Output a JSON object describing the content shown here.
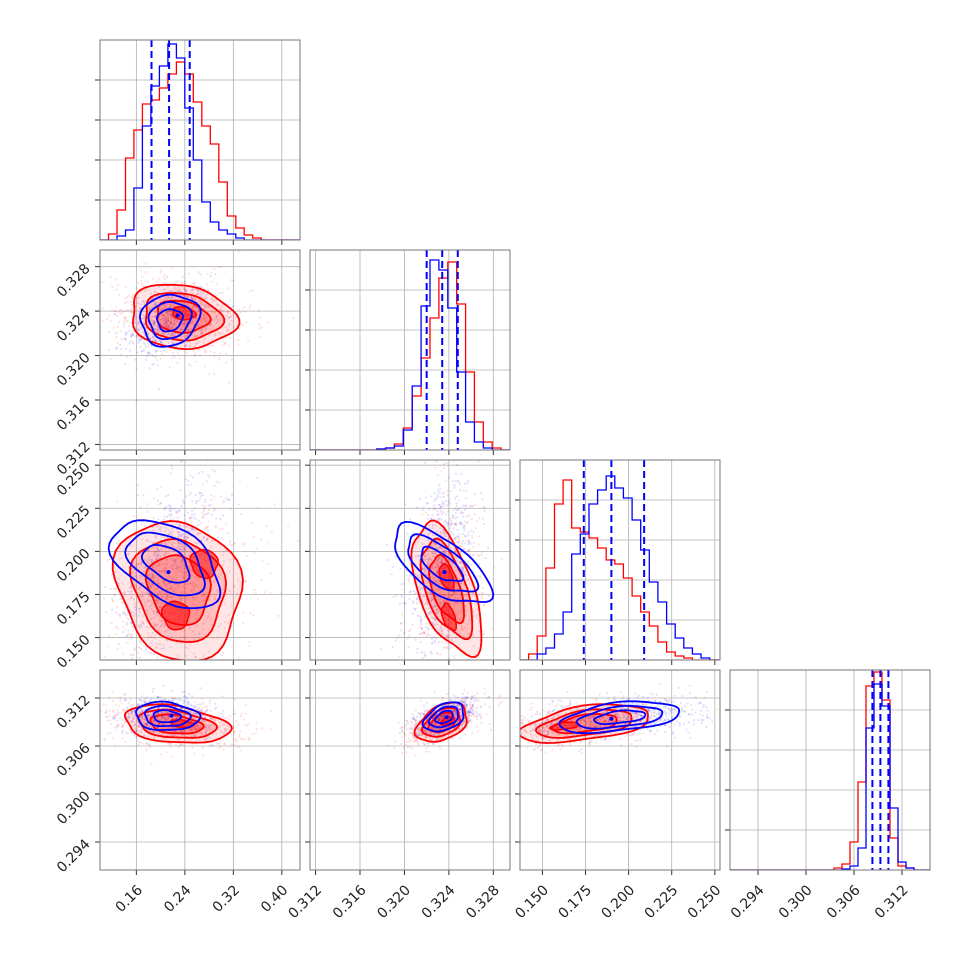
{
  "colors": {
    "series_red": "#ff0000",
    "series_blue": "#0000ff",
    "grid": "#b0b0b0",
    "frame": "#777777",
    "background": "#ffffff"
  },
  "chart_data": {
    "type": "corner",
    "grid": true,
    "legend": "none",
    "series": [
      {
        "color": "#ff0000"
      },
      {
        "color": "#0000ff"
      }
    ],
    "parameters": [
      {
        "range": [
          0.1,
          0.43
        ],
        "ticks": [
          0.16,
          0.24,
          0.32,
          0.4
        ],
        "tick_labels": [
          "0.16",
          "0.24",
          "0.32",
          "0.40"
        ]
      },
      {
        "range": [
          0.3115,
          0.3295
        ],
        "ticks": [
          0.312,
          0.316,
          0.32,
          0.324,
          0.328
        ],
        "tick_labels": [
          "0.312",
          "0.316",
          "0.320",
          "0.324",
          "0.328"
        ]
      },
      {
        "range": [
          0.137,
          0.253
        ],
        "ticks": [
          0.15,
          0.175,
          0.2,
          0.225,
          0.25
        ],
        "tick_labels": [
          "0.150",
          "0.175",
          "0.200",
          "0.225",
          "0.250"
        ]
      },
      {
        "range": [
          0.2905,
          0.3155
        ],
        "ticks": [
          0.294,
          0.3,
          0.306,
          0.312
        ],
        "tick_labels": [
          "0.294",
          "0.300",
          "0.306",
          "0.312"
        ]
      }
    ],
    "marginals": [
      {
        "quantiles_blue": [
          0.185,
          0.214,
          0.248
        ],
        "red": [
          [
            0.1,
            0.114,
            0.0
          ],
          [
            0.114,
            0.128,
            0.03
          ],
          [
            0.128,
            0.142,
            0.15
          ],
          [
            0.142,
            0.156,
            0.41
          ],
          [
            0.156,
            0.17,
            0.55
          ],
          [
            0.17,
            0.184,
            0.68
          ],
          [
            0.184,
            0.198,
            0.7
          ],
          [
            0.198,
            0.212,
            0.76
          ],
          [
            0.212,
            0.226,
            0.83
          ],
          [
            0.226,
            0.24,
            0.89
          ],
          [
            0.24,
            0.254,
            0.83
          ],
          [
            0.254,
            0.268,
            0.69
          ],
          [
            0.268,
            0.282,
            0.57
          ],
          [
            0.282,
            0.296,
            0.48
          ],
          [
            0.296,
            0.31,
            0.29
          ],
          [
            0.31,
            0.324,
            0.12
          ],
          [
            0.324,
            0.338,
            0.06
          ],
          [
            0.338,
            0.352,
            0.025
          ],
          [
            0.352,
            0.366,
            0.01
          ],
          [
            0.366,
            0.43,
            0.0
          ]
        ],
        "blue": [
          [
            0.1,
            0.128,
            0.0
          ],
          [
            0.128,
            0.142,
            0.02
          ],
          [
            0.142,
            0.156,
            0.05
          ],
          [
            0.156,
            0.17,
            0.26
          ],
          [
            0.17,
            0.184,
            0.57
          ],
          [
            0.184,
            0.198,
            0.77
          ],
          [
            0.198,
            0.212,
            0.87
          ],
          [
            0.212,
            0.226,
            0.98
          ],
          [
            0.226,
            0.24,
            0.91
          ],
          [
            0.24,
            0.254,
            0.66
          ],
          [
            0.254,
            0.268,
            0.4
          ],
          [
            0.268,
            0.282,
            0.19
          ],
          [
            0.282,
            0.296,
            0.09
          ],
          [
            0.296,
            0.31,
            0.05
          ],
          [
            0.31,
            0.324,
            0.03
          ],
          [
            0.324,
            0.338,
            0.01
          ],
          [
            0.338,
            0.43,
            0.0
          ]
        ]
      },
      {
        "quantiles_blue": [
          0.322,
          0.3234,
          0.3248
        ],
        "red": [
          [
            0.3115,
            0.3175,
            0.0
          ],
          [
            0.3175,
            0.3183,
            0.005
          ],
          [
            0.3183,
            0.3191,
            0.01
          ],
          [
            0.3191,
            0.3199,
            0.03
          ],
          [
            0.3199,
            0.3207,
            0.11
          ],
          [
            0.3207,
            0.3215,
            0.27
          ],
          [
            0.3215,
            0.3223,
            0.46
          ],
          [
            0.3223,
            0.3231,
            0.66
          ],
          [
            0.3231,
            0.3239,
            0.86
          ],
          [
            0.3239,
            0.3247,
            0.94
          ],
          [
            0.3247,
            0.3255,
            0.73
          ],
          [
            0.3255,
            0.3263,
            0.39
          ],
          [
            0.3263,
            0.3271,
            0.14
          ],
          [
            0.3271,
            0.3279,
            0.04
          ],
          [
            0.3279,
            0.3287,
            0.01
          ],
          [
            0.3287,
            0.3295,
            0.0
          ]
        ],
        "blue": [
          [
            0.3115,
            0.3175,
            0.0
          ],
          [
            0.3175,
            0.3183,
            0.005
          ],
          [
            0.3183,
            0.3191,
            0.01
          ],
          [
            0.3191,
            0.3199,
            0.02
          ],
          [
            0.3199,
            0.3207,
            0.1
          ],
          [
            0.3207,
            0.3215,
            0.32
          ],
          [
            0.3215,
            0.3223,
            0.72
          ],
          [
            0.3223,
            0.3231,
            0.95
          ],
          [
            0.3231,
            0.3239,
            0.9
          ],
          [
            0.3239,
            0.3247,
            0.71
          ],
          [
            0.3247,
            0.3255,
            0.39
          ],
          [
            0.3255,
            0.3263,
            0.14
          ],
          [
            0.3263,
            0.3271,
            0.04
          ],
          [
            0.3271,
            0.3279,
            0.01
          ],
          [
            0.3279,
            0.3295,
            0.0
          ]
        ]
      },
      {
        "quantiles_blue": [
          0.174,
          0.19,
          0.209
        ],
        "red": [
          [
            0.137,
            0.142,
            0.0
          ],
          [
            0.142,
            0.147,
            0.03
          ],
          [
            0.147,
            0.152,
            0.12
          ],
          [
            0.152,
            0.157,
            0.46
          ],
          [
            0.157,
            0.162,
            0.78
          ],
          [
            0.162,
            0.167,
            0.9
          ],
          [
            0.167,
            0.172,
            0.66
          ],
          [
            0.172,
            0.177,
            0.64
          ],
          [
            0.177,
            0.182,
            0.61
          ],
          [
            0.182,
            0.187,
            0.56
          ],
          [
            0.187,
            0.192,
            0.5
          ],
          [
            0.192,
            0.197,
            0.48
          ],
          [
            0.197,
            0.202,
            0.41
          ],
          [
            0.202,
            0.207,
            0.32
          ],
          [
            0.207,
            0.212,
            0.24
          ],
          [
            0.212,
            0.217,
            0.17
          ],
          [
            0.217,
            0.222,
            0.09
          ],
          [
            0.222,
            0.227,
            0.04
          ],
          [
            0.227,
            0.232,
            0.02
          ],
          [
            0.232,
            0.237,
            0.01
          ],
          [
            0.237,
            0.253,
            0.0
          ]
        ],
        "blue": [
          [
            0.137,
            0.147,
            0.0
          ],
          [
            0.147,
            0.152,
            0.03
          ],
          [
            0.152,
            0.157,
            0.06
          ],
          [
            0.157,
            0.162,
            0.13
          ],
          [
            0.162,
            0.167,
            0.24
          ],
          [
            0.167,
            0.172,
            0.53
          ],
          [
            0.172,
            0.177,
            0.63
          ],
          [
            0.177,
            0.182,
            0.78
          ],
          [
            0.182,
            0.187,
            0.85
          ],
          [
            0.187,
            0.192,
            0.92
          ],
          [
            0.192,
            0.197,
            0.86
          ],
          [
            0.197,
            0.202,
            0.81
          ],
          [
            0.202,
            0.207,
            0.7
          ],
          [
            0.207,
            0.212,
            0.55
          ],
          [
            0.212,
            0.217,
            0.39
          ],
          [
            0.217,
            0.222,
            0.29
          ],
          [
            0.222,
            0.227,
            0.18
          ],
          [
            0.227,
            0.232,
            0.11
          ],
          [
            0.232,
            0.237,
            0.06
          ],
          [
            0.237,
            0.242,
            0.03
          ],
          [
            0.242,
            0.247,
            0.01
          ],
          [
            0.247,
            0.253,
            0.0
          ]
        ]
      },
      {
        "quantiles_blue": [
          0.3083,
          0.3093,
          0.3103
        ],
        "red": [
          [
            0.2905,
            0.3035,
            0.0
          ],
          [
            0.3035,
            0.3045,
            0.01
          ],
          [
            0.3045,
            0.3055,
            0.03
          ],
          [
            0.3055,
            0.3065,
            0.14
          ],
          [
            0.3065,
            0.3075,
            0.44
          ],
          [
            0.3075,
            0.3085,
            0.92
          ],
          [
            0.3085,
            0.3095,
            0.99
          ],
          [
            0.3095,
            0.3105,
            0.85
          ],
          [
            0.3105,
            0.3115,
            0.16
          ],
          [
            0.3115,
            0.3125,
            0.02
          ],
          [
            0.3125,
            0.3135,
            0.01
          ],
          [
            0.3135,
            0.3155,
            0.0
          ]
        ],
        "blue": [
          [
            0.2905,
            0.3045,
            0.0
          ],
          [
            0.3045,
            0.3055,
            0.005
          ],
          [
            0.3055,
            0.3065,
            0.02
          ],
          [
            0.3065,
            0.3075,
            0.11
          ],
          [
            0.3075,
            0.3085,
            0.71
          ],
          [
            0.3085,
            0.3095,
            0.93
          ],
          [
            0.3095,
            0.3105,
            0.82
          ],
          [
            0.3105,
            0.3115,
            0.31
          ],
          [
            0.3115,
            0.3125,
            0.04
          ],
          [
            0.3125,
            0.3135,
            0.01
          ],
          [
            0.3135,
            0.3155,
            0.0
          ]
        ]
      }
    ],
    "pairs": [
      {
        "row": 1,
        "col": 0,
        "red": {
          "center": [
            0.235,
            0.3235
          ],
          "sx": 0.046,
          "sy": 0.0015,
          "rho": -0.15,
          "modes": [
            [
              0.238,
              0.3238
            ]
          ]
        },
        "blue": {
          "center": [
            0.215,
            0.3232
          ],
          "sx": 0.028,
          "sy": 0.0013,
          "rho": 0.3,
          "modes": [
            [
              0.228,
              0.3236
            ]
          ]
        }
      },
      {
        "row": 2,
        "col": 0,
        "red": {
          "center": [
            0.23,
            0.178
          ],
          "sx": 0.052,
          "sy": 0.022,
          "rho": 0.28,
          "modes": [
            [
              0.225,
              0.163
            ],
            [
              0.272,
              0.193
            ]
          ]
        },
        "blue": {
          "center": [
            0.21,
            0.193
          ],
          "sx": 0.033,
          "sy": 0.02,
          "rho": 0.5,
          "modes": [
            [
              0.213,
              0.188
            ]
          ]
        }
      },
      {
        "row": 2,
        "col": 1,
        "red": {
          "center": [
            0.3238,
            0.178
          ],
          "sx": 0.0013,
          "sy": 0.021,
          "rho": 0.1,
          "modes": [
            [
              0.324,
              0.162
            ],
            [
              0.3238,
              0.185
            ]
          ]
        },
        "blue": {
          "center": [
            0.3233,
            0.192
          ],
          "sx": 0.0013,
          "sy": 0.019,
          "rho": 0.35,
          "modes": [
            [
              0.3236,
              0.188
            ]
          ]
        }
      },
      {
        "row": 3,
        "col": 0,
        "red": {
          "center": [
            0.225,
            0.3087
          ],
          "sx": 0.046,
          "sy": 0.0012,
          "rho": -0.25,
          "modes": [
            [
              0.235,
              0.3088
            ]
          ]
        },
        "blue": {
          "center": [
            0.21,
            0.3097
          ],
          "sx": 0.03,
          "sy": 0.001,
          "rho": -0.1,
          "modes": [
            [
              0.218,
              0.3098
            ]
          ]
        }
      },
      {
        "row": 3,
        "col": 1,
        "red": {
          "center": [
            0.3234,
            0.3089
          ],
          "sx": 0.0013,
          "sy": 0.0011,
          "rho": 0.6,
          "modes": [
            [
              0.3238,
              0.3091
            ]
          ]
        },
        "blue": {
          "center": [
            0.3236,
            0.3096
          ],
          "sx": 0.0011,
          "sy": 0.0009,
          "rho": 0.55,
          "modes": [
            [
              0.3238,
              0.3096
            ]
          ]
        }
      },
      {
        "row": 3,
        "col": 2,
        "red": {
          "center": [
            0.175,
            0.3088
          ],
          "sx": 0.02,
          "sy": 0.0011,
          "rho": 0.4,
          "modes": [
            [
              0.163,
              0.3085
            ]
          ]
        },
        "blue": {
          "center": [
            0.195,
            0.3096
          ],
          "sx": 0.02,
          "sy": 0.001,
          "rho": 0.35,
          "modes": [
            [
              0.19,
              0.3094
            ]
          ]
        }
      }
    ]
  }
}
